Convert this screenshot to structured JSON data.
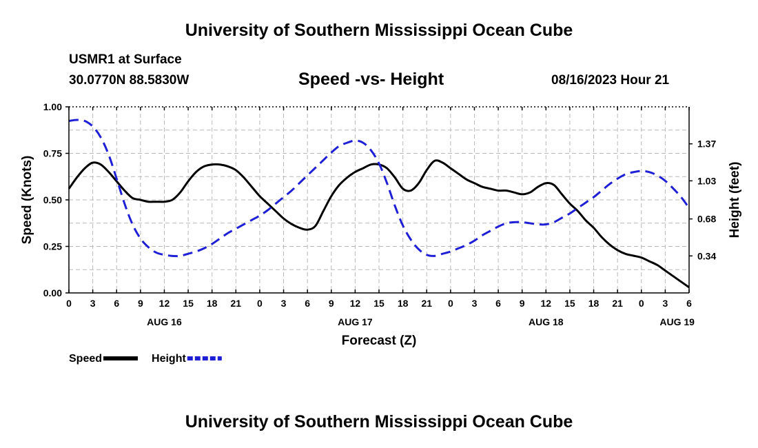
{
  "header": {
    "title_top": "University of Southern Mississippi Ocean Cube",
    "station_name": "USMR1 at Surface",
    "station_coords": "30.0770N  88.5830W",
    "chart_title": "Speed -vs- Height",
    "issue_time": "08/16/2023 Hour 21"
  },
  "footer": {
    "title_bottom": "University of Southern Mississippi Ocean Cube"
  },
  "chart_data": {
    "type": "line",
    "title": "Speed -vs- Height",
    "xlabel": "Forecast (Z)",
    "ylabel": "Speed (Knots)",
    "y2label": "Height (feet)",
    "x_unit": "hours since AUG 16 00Z",
    "xlim": [
      0,
      78
    ],
    "ylim": [
      0,
      1.0
    ],
    "y2lim": [
      0,
      1.71
    ],
    "grid": true,
    "x_ticks": [
      {
        "x": 0,
        "label": "0"
      },
      {
        "x": 3,
        "label": "3"
      },
      {
        "x": 6,
        "label": "6"
      },
      {
        "x": 9,
        "label": "9"
      },
      {
        "x": 12,
        "label": "12"
      },
      {
        "x": 15,
        "label": "15"
      },
      {
        "x": 18,
        "label": "18"
      },
      {
        "x": 21,
        "label": "21"
      },
      {
        "x": 24,
        "label": "0"
      },
      {
        "x": 27,
        "label": "3"
      },
      {
        "x": 30,
        "label": "6"
      },
      {
        "x": 33,
        "label": "9"
      },
      {
        "x": 36,
        "label": "12"
      },
      {
        "x": 39,
        "label": "15"
      },
      {
        "x": 42,
        "label": "18"
      },
      {
        "x": 45,
        "label": "21"
      },
      {
        "x": 48,
        "label": "0"
      },
      {
        "x": 51,
        "label": "3"
      },
      {
        "x": 54,
        "label": "6"
      },
      {
        "x": 57,
        "label": "9"
      },
      {
        "x": 60,
        "label": "12"
      },
      {
        "x": 63,
        "label": "15"
      },
      {
        "x": 66,
        "label": "18"
      },
      {
        "x": 69,
        "label": "21"
      },
      {
        "x": 72,
        "label": "0"
      },
      {
        "x": 75,
        "label": "3"
      },
      {
        "x": 78,
        "label": "6"
      }
    ],
    "date_labels": [
      {
        "x": 12,
        "label": "AUG 16"
      },
      {
        "x": 36,
        "label": "AUG 17"
      },
      {
        "x": 60,
        "label": "AUG 18"
      },
      {
        "x": 76.5,
        "label": "AUG 19"
      }
    ],
    "y_ticks": [
      {
        "y": 0.0,
        "label": "0.00"
      },
      {
        "y": 0.25,
        "label": "0.25"
      },
      {
        "y": 0.5,
        "label": "0.50"
      },
      {
        "y": 0.75,
        "label": "0.75"
      },
      {
        "y": 1.0,
        "label": "1.00"
      }
    ],
    "y2_ticks": [
      {
        "y": 0.34,
        "label": "0.34"
      },
      {
        "y": 0.68,
        "label": "0.68"
      },
      {
        "y": 1.03,
        "label": "1.03"
      },
      {
        "y": 1.37,
        "label": "1.37"
      }
    ],
    "series": [
      {
        "name": "Speed",
        "axis": "left",
        "color": "#000000",
        "dash": "solid",
        "x": [
          0,
          1,
          2,
          3,
          4,
          5,
          6,
          7,
          8,
          9,
          10,
          11,
          12,
          13,
          14,
          15,
          16,
          17,
          18,
          19,
          20,
          21,
          22,
          23,
          24,
          25,
          26,
          27,
          28,
          29,
          30,
          31,
          32,
          33,
          34,
          35,
          36,
          37,
          38,
          39,
          40,
          41,
          42,
          43,
          44,
          45,
          46,
          47,
          48,
          49,
          50,
          51,
          52,
          53,
          54,
          55,
          56,
          57,
          58,
          59,
          60,
          61,
          62,
          63,
          64,
          65,
          66,
          67,
          68,
          69,
          70,
          71,
          72,
          73,
          74,
          75,
          76,
          77,
          78
        ],
        "values": [
          0.56,
          0.62,
          0.67,
          0.7,
          0.69,
          0.65,
          0.6,
          0.55,
          0.51,
          0.5,
          0.49,
          0.49,
          0.49,
          0.5,
          0.54,
          0.6,
          0.65,
          0.68,
          0.69,
          0.69,
          0.68,
          0.66,
          0.62,
          0.57,
          0.52,
          0.48,
          0.44,
          0.4,
          0.37,
          0.35,
          0.34,
          0.36,
          0.44,
          0.52,
          0.58,
          0.62,
          0.65,
          0.67,
          0.69,
          0.69,
          0.67,
          0.62,
          0.56,
          0.55,
          0.59,
          0.66,
          0.71,
          0.7,
          0.67,
          0.64,
          0.61,
          0.59,
          0.57,
          0.56,
          0.55,
          0.55,
          0.54,
          0.53,
          0.54,
          0.57,
          0.59,
          0.58,
          0.53,
          0.48,
          0.44,
          0.39,
          0.35,
          0.3,
          0.26,
          0.23,
          0.21,
          0.2,
          0.19,
          0.17,
          0.15,
          0.12,
          0.09,
          0.06,
          0.03
        ]
      },
      {
        "name": "Height",
        "axis": "right",
        "color": "#1f1fd6",
        "dash": "dashed",
        "x": [
          0,
          1,
          2,
          3,
          4,
          5,
          6,
          7,
          8,
          9,
          10,
          11,
          12,
          13,
          14,
          15,
          16,
          17,
          18,
          19,
          20,
          21,
          22,
          23,
          24,
          25,
          26,
          27,
          28,
          29,
          30,
          31,
          32,
          33,
          34,
          35,
          36,
          37,
          38,
          39,
          40,
          41,
          42,
          43,
          44,
          45,
          46,
          47,
          48,
          49,
          50,
          51,
          52,
          53,
          54,
          55,
          56,
          57,
          58,
          59,
          60,
          61,
          62,
          63,
          64,
          65,
          66,
          67,
          68,
          69,
          70,
          71,
          72,
          73,
          74,
          75,
          76,
          77,
          78
        ],
        "values": [
          1.58,
          1.59,
          1.58,
          1.53,
          1.43,
          1.27,
          1.05,
          0.82,
          0.63,
          0.5,
          0.42,
          0.37,
          0.35,
          0.34,
          0.34,
          0.36,
          0.38,
          0.41,
          0.45,
          0.5,
          0.55,
          0.59,
          0.63,
          0.67,
          0.71,
          0.76,
          0.82,
          0.88,
          0.94,
          1.01,
          1.08,
          1.15,
          1.22,
          1.29,
          1.35,
          1.38,
          1.4,
          1.38,
          1.31,
          1.19,
          1.01,
          0.8,
          0.62,
          0.49,
          0.4,
          0.35,
          0.34,
          0.36,
          0.38,
          0.41,
          0.44,
          0.48,
          0.53,
          0.57,
          0.61,
          0.64,
          0.65,
          0.65,
          0.64,
          0.63,
          0.63,
          0.65,
          0.69,
          0.73,
          0.78,
          0.83,
          0.88,
          0.94,
          1.0,
          1.05,
          1.09,
          1.11,
          1.12,
          1.11,
          1.08,
          1.03,
          0.96,
          0.88,
          0.78
        ]
      }
    ],
    "legend": {
      "placement": "bottom-left",
      "entries": [
        "Speed",
        "Height"
      ]
    }
  }
}
